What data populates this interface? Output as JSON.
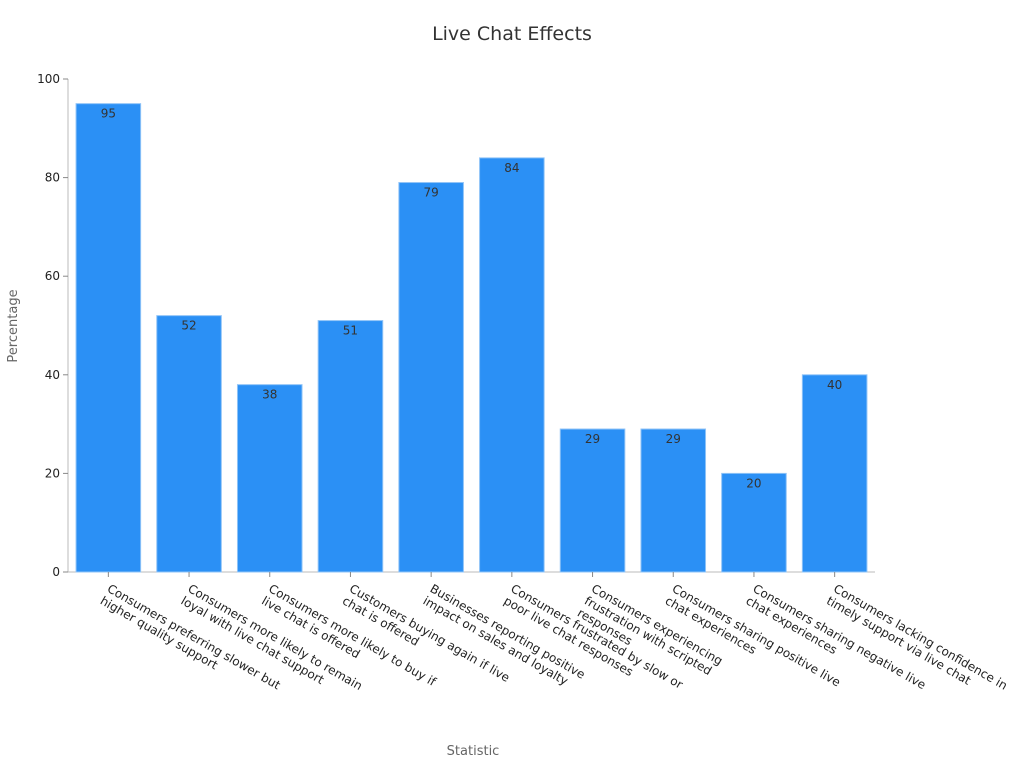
{
  "chart_data": {
    "type": "bar",
    "title": "Live Chat Effects",
    "x_label": "Statistic",
    "y_label": "Percentage",
    "categories": [
      "Consumers preferring slower but higher quality support",
      "Consumers more likely to remain loyal with live chat support",
      "Consumers more likely to buy if live chat is offered",
      "Customers buying again if live chat is offered",
      "Businesses reporting positive impact on sales and loyalty",
      "Consumers frustrated by slow or poor live chat responses",
      "Consumers experiencing frustration with scripted responses",
      "Consumers sharing positive live chat experiences",
      "Consumers sharing negative live chat experiences",
      "Consumers lacking confidence in timely support via live chat"
    ],
    "values": [
      95,
      52,
      38,
      51,
      79,
      84,
      29,
      29,
      20,
      40
    ],
    "color": "#2b90f5",
    "ylim": [
      0,
      100
    ],
    "yticks": [
      0,
      20,
      40,
      60,
      80,
      100
    ],
    "grid": false
  }
}
